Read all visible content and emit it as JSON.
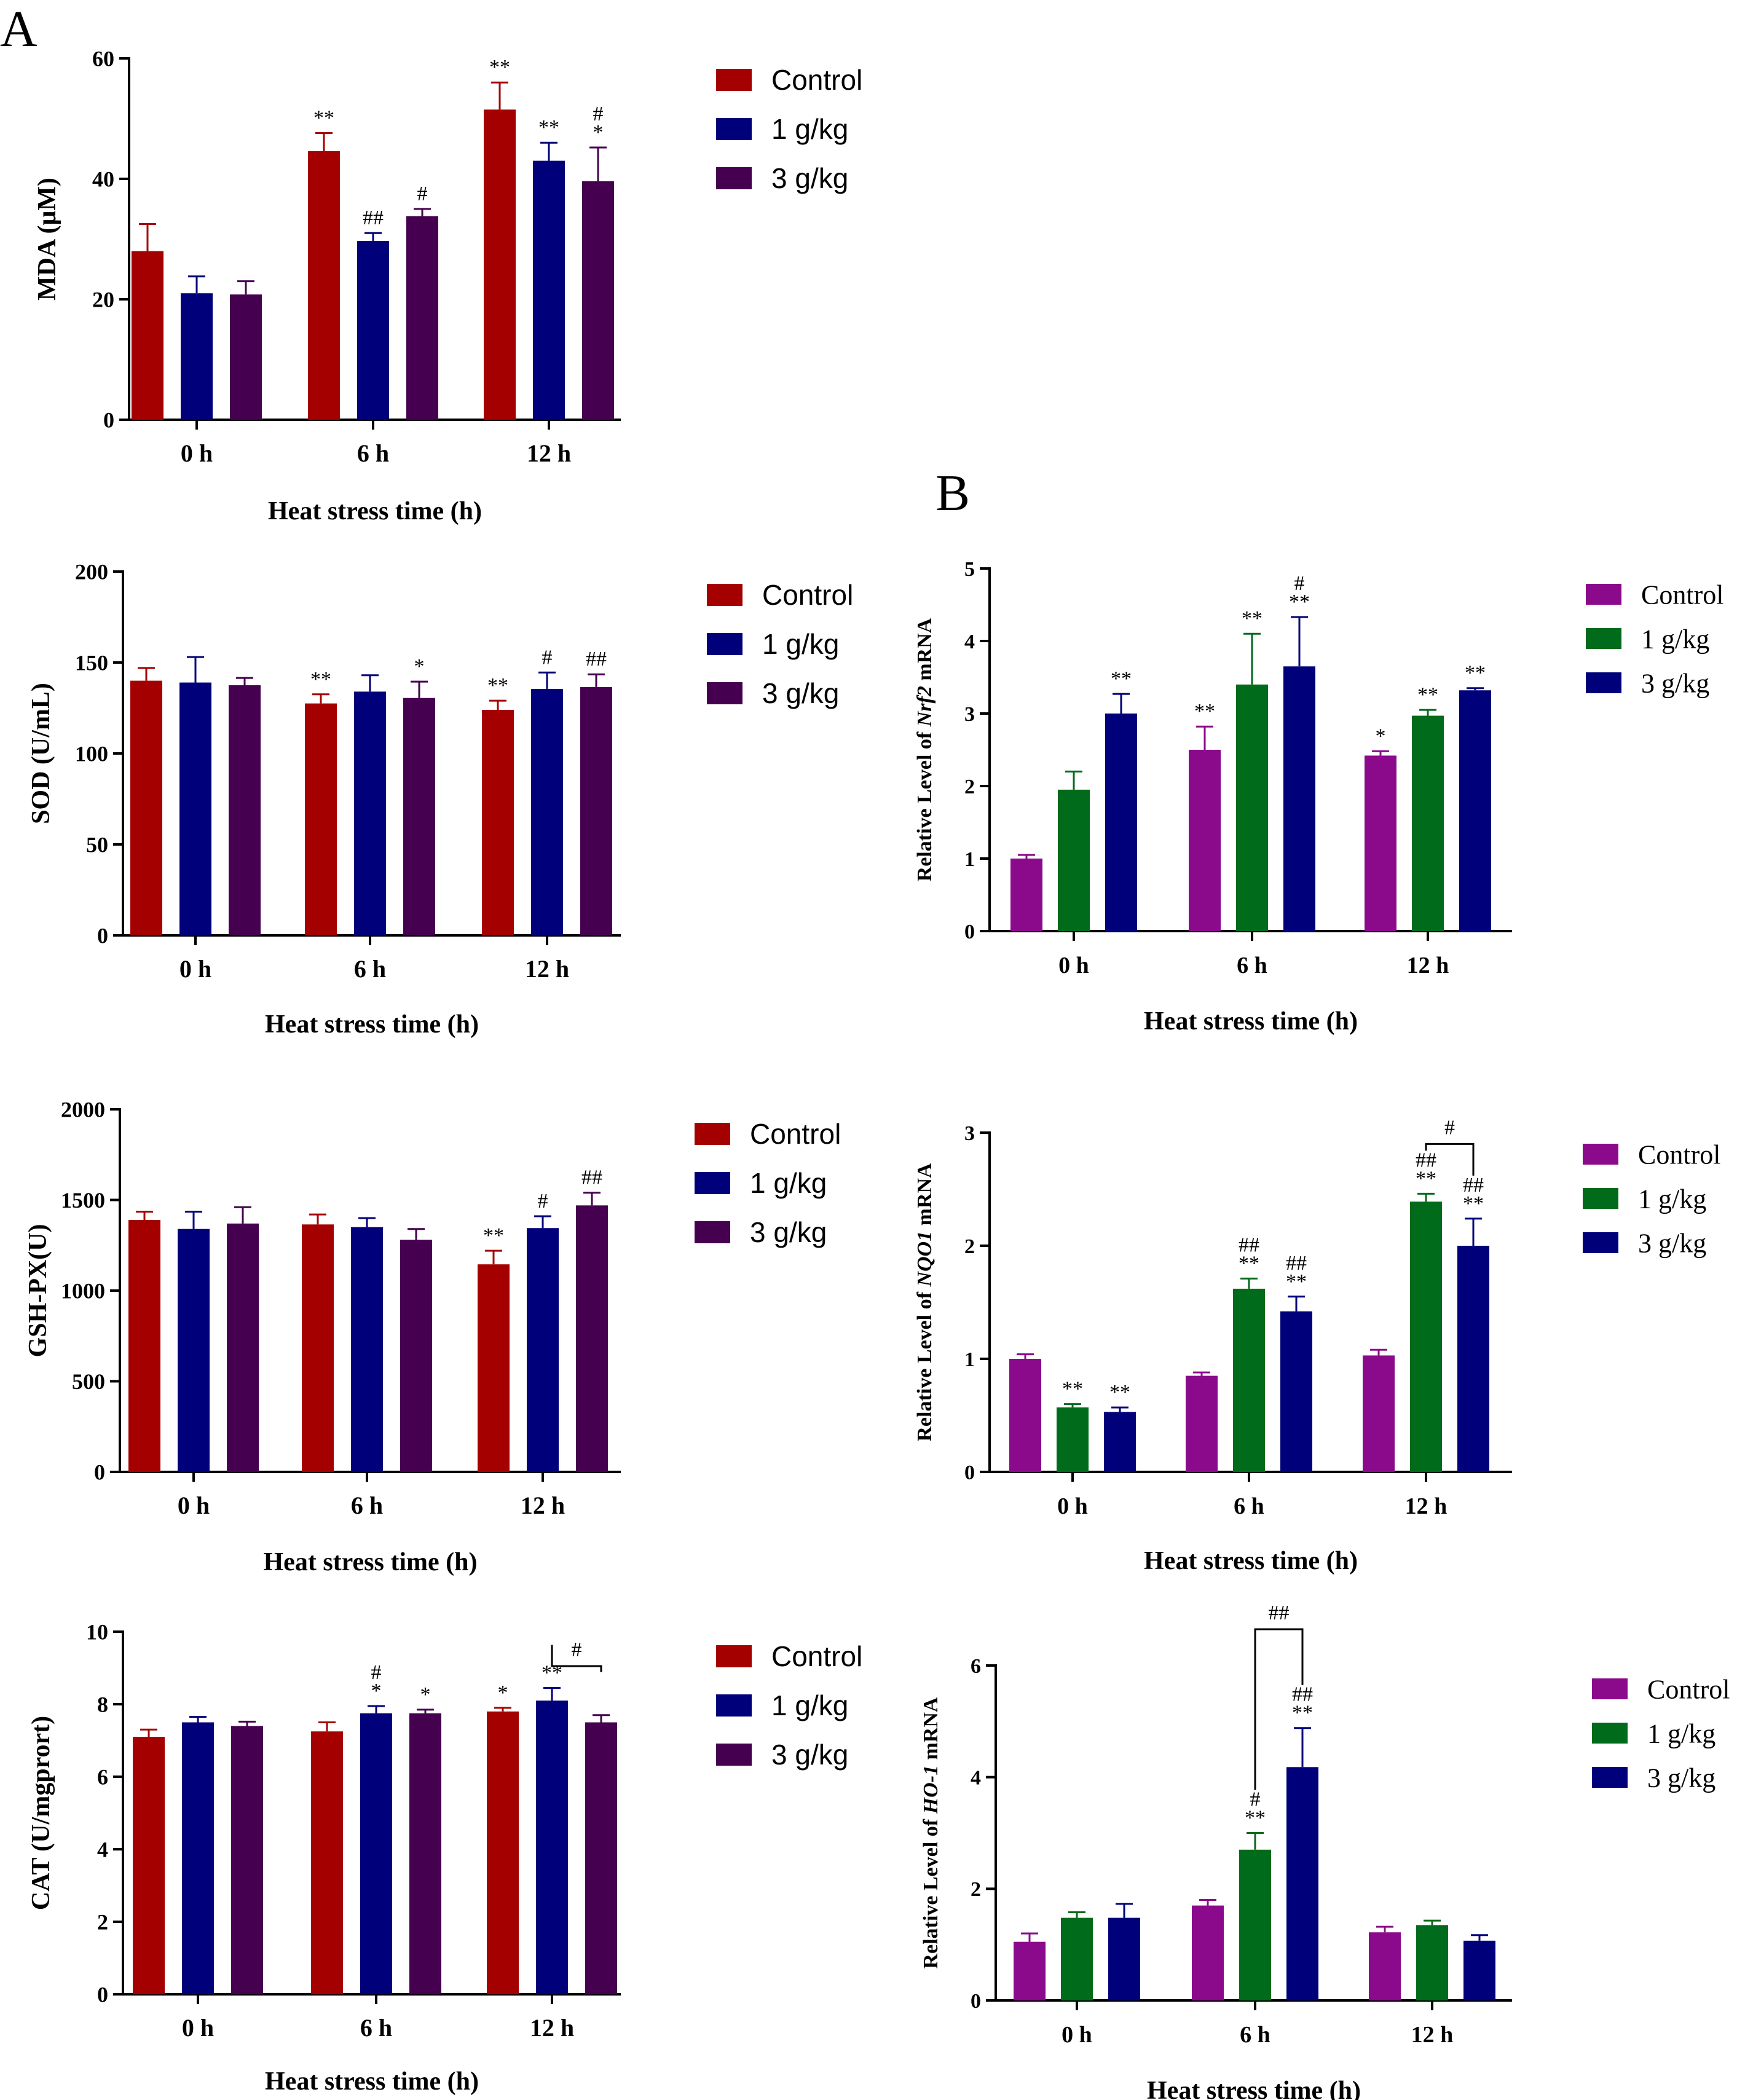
{
  "panel_labels": {
    "a": "A",
    "b": "B"
  },
  "colors": {
    "control_A": "#a50000",
    "g1_A": "#00007a",
    "g3_A": "#45004f",
    "control_B": "#8b0a8b",
    "g1_B": "#006b1a",
    "g3_B": "#00007a",
    "error": "#000000"
  },
  "chart_data": [
    {
      "id": "mda",
      "panel": "A",
      "type": "bar",
      "title": "",
      "ylabel": "MDA (μM)",
      "ylabel_italic": "",
      "ylabel_suffix": "",
      "xlabel": "Heat stress time (h)",
      "categories": [
        "0 h",
        "6 h",
        "12 h"
      ],
      "ylim": [
        0,
        60
      ],
      "yticks": [
        0,
        20,
        40,
        60
      ],
      "series": [
        {
          "name": "Control",
          "values": [
            28,
            44.6,
            51.5
          ],
          "errors": [
            4.5,
            3,
            4.5
          ],
          "marks": [
            "",
            "**",
            "**"
          ]
        },
        {
          "name": "1 g/kg",
          "values": [
            21,
            29.7,
            43
          ],
          "errors": [
            2.8,
            1.3,
            3
          ],
          "marks": [
            "",
            "##",
            "**"
          ]
        },
        {
          "name": "3 g/kg",
          "values": [
            20.8,
            33.8,
            39.6
          ],
          "errors": [
            2.2,
            1.2,
            5.6
          ],
          "marks": [
            "",
            "#",
            "#\n*"
          ]
        }
      ],
      "brackets": []
    },
    {
      "id": "sod",
      "panel": "A",
      "type": "bar",
      "title": "",
      "ylabel": "SOD (U/mL)",
      "ylabel_italic": "",
      "ylabel_suffix": "",
      "xlabel": "Heat stress time (h)",
      "categories": [
        "0 h",
        "6 h",
        "12 h"
      ],
      "ylim": [
        0,
        200
      ],
      "yticks": [
        0,
        50,
        100,
        150,
        200
      ],
      "series": [
        {
          "name": "Control",
          "values": [
            140,
            127.5,
            124
          ],
          "errors": [
            7,
            5,
            5
          ],
          "marks": [
            "",
            "**",
            "**"
          ]
        },
        {
          "name": "1 g/kg",
          "values": [
            139,
            134,
            135.5
          ],
          "errors": [
            14,
            9,
            9
          ],
          "marks": [
            "",
            "",
            "#"
          ]
        },
        {
          "name": "3 g/kg",
          "values": [
            137.5,
            130.5,
            136.5
          ],
          "errors": [
            4,
            9,
            7
          ],
          "marks": [
            "",
            "*",
            "##"
          ]
        }
      ],
      "brackets": []
    },
    {
      "id": "gsh",
      "panel": "A",
      "type": "bar",
      "title": "",
      "ylabel": "GSH-PX(U)",
      "ylabel_italic": "",
      "ylabel_suffix": "",
      "xlabel": "Heat stress time (h)",
      "categories": [
        "0 h",
        "6 h",
        "12 h"
      ],
      "ylim": [
        0,
        2000
      ],
      "yticks": [
        0,
        500,
        1000,
        1500,
        2000
      ],
      "series": [
        {
          "name": "Control",
          "values": [
            1390,
            1365,
            1145
          ],
          "errors": [
            45,
            55,
            75
          ],
          "marks": [
            "",
            "",
            "**"
          ]
        },
        {
          "name": "1 g/kg",
          "values": [
            1340,
            1350,
            1345
          ],
          "errors": [
            95,
            50,
            65
          ],
          "marks": [
            "",
            "",
            "#"
          ]
        },
        {
          "name": "3 g/kg",
          "values": [
            1370,
            1280,
            1470
          ],
          "errors": [
            90,
            60,
            70
          ],
          "marks": [
            "",
            "",
            "##"
          ]
        }
      ],
      "brackets": []
    },
    {
      "id": "cat",
      "panel": "A",
      "type": "bar",
      "title": "",
      "ylabel": "CAT (U/mgprort)",
      "ylabel_italic": "",
      "ylabel_suffix": "",
      "xlabel": "Heat stress time (h)",
      "categories": [
        "0 h",
        "6 h",
        "12 h"
      ],
      "ylim": [
        0,
        10
      ],
      "yticks": [
        0,
        2,
        4,
        6,
        8,
        10
      ],
      "series": [
        {
          "name": "Control",
          "values": [
            7.1,
            7.25,
            7.8
          ],
          "errors": [
            0.2,
            0.25,
            0.1
          ],
          "marks": [
            "",
            "",
            "*"
          ]
        },
        {
          "name": "1 g/kg",
          "values": [
            7.5,
            7.75,
            8.1
          ],
          "errors": [
            0.15,
            0.2,
            0.35
          ],
          "marks": [
            "",
            "#\n*",
            "**"
          ]
        },
        {
          "name": "3 g/kg",
          "values": [
            7.4,
            7.75,
            7.5
          ],
          "errors": [
            0.12,
            0.1,
            0.2
          ],
          "marks": [
            "",
            "*",
            ""
          ]
        }
      ],
      "brackets": [
        {
          "group": 2,
          "from": 1,
          "to": 2,
          "y": 9.05,
          "label": "#"
        }
      ]
    },
    {
      "id": "nrf2",
      "panel": "B",
      "type": "bar",
      "title": "",
      "ylabel": "Relative Level of ",
      "ylabel_italic": "Nrf2",
      "ylabel_suffix": " mRNA",
      "xlabel": "Heat stress time (h)",
      "categories": [
        "0 h",
        "6 h",
        "12 h"
      ],
      "ylim": [
        0,
        5
      ],
      "yticks": [
        0,
        1,
        2,
        3,
        4,
        5
      ],
      "series": [
        {
          "name": "Control",
          "values": [
            1,
            2.5,
            2.42
          ],
          "errors": [
            0.05,
            0.32,
            0.06
          ],
          "marks": [
            "",
            "**",
            "*"
          ]
        },
        {
          "name": "1 g/kg",
          "values": [
            1.95,
            3.4,
            2.97
          ],
          "errors": [
            0.25,
            0.7,
            0.08
          ],
          "marks": [
            "",
            "**",
            "**"
          ]
        },
        {
          "name": "3 g/kg",
          "values": [
            3,
            3.65,
            3.32
          ],
          "errors": [
            0.27,
            0.68,
            0.03
          ],
          "marks": [
            "**",
            "#\n**",
            "**"
          ]
        }
      ],
      "brackets": []
    },
    {
      "id": "nqo1",
      "panel": "B",
      "type": "bar",
      "title": "",
      "ylabel": "Relative Level of ",
      "ylabel_italic": "NQO1",
      "ylabel_suffix": " mRNA",
      "xlabel": "Heat stress time (h)",
      "categories": [
        "0 h",
        "6 h",
        "12 h"
      ],
      "ylim": [
        0,
        3
      ],
      "yticks": [
        0,
        1,
        2,
        3
      ],
      "series": [
        {
          "name": "Control",
          "values": [
            1,
            0.85,
            1.03
          ],
          "errors": [
            0.04,
            0.03,
            0.05
          ],
          "marks": [
            "",
            "",
            ""
          ]
        },
        {
          "name": "1 g/kg",
          "values": [
            0.57,
            1.62,
            2.39
          ],
          "errors": [
            0.03,
            0.09,
            0.07
          ],
          "marks": [
            "**",
            "##\n**",
            "##\n**"
          ]
        },
        {
          "name": "3 g/kg",
          "values": [
            0.53,
            1.42,
            2
          ],
          "errors": [
            0.04,
            0.13,
            0.24
          ],
          "marks": [
            "**",
            "##\n**",
            "##\n**"
          ]
        }
      ],
      "brackets": [
        {
          "group": 2,
          "from": 1,
          "to": 2,
          "y": 2.9,
          "label": "#"
        }
      ]
    },
    {
      "id": "ho1",
      "panel": "B",
      "type": "bar",
      "title": "",
      "ylabel": "Relative Level of ",
      "ylabel_italic": "HO-1",
      "ylabel_suffix": " mRNA",
      "xlabel": "Heat stress time (h)",
      "categories": [
        "0 h",
        "6 h",
        "12 h"
      ],
      "ylim": [
        0,
        6
      ],
      "yticks": [
        0,
        2,
        4,
        6
      ],
      "series": [
        {
          "name": "Control",
          "values": [
            1.05,
            1.7,
            1.22
          ],
          "errors": [
            0.15,
            0.1,
            0.1
          ],
          "marks": [
            "",
            "",
            ""
          ]
        },
        {
          "name": "1 g/kg",
          "values": [
            1.48,
            2.7,
            1.35
          ],
          "errors": [
            0.1,
            0.3,
            0.08
          ],
          "marks": [
            "",
            "#\n**",
            ""
          ]
        },
        {
          "name": "3 g/kg",
          "values": [
            1.48,
            4.18,
            1.07
          ],
          "errors": [
            0.25,
            0.7,
            0.1
          ],
          "marks": [
            "",
            "##\n**",
            ""
          ]
        }
      ],
      "brackets": [
        {
          "group": 1,
          "from": 1,
          "to": 2,
          "y": 6.65,
          "label": "##"
        }
      ]
    }
  ]
}
